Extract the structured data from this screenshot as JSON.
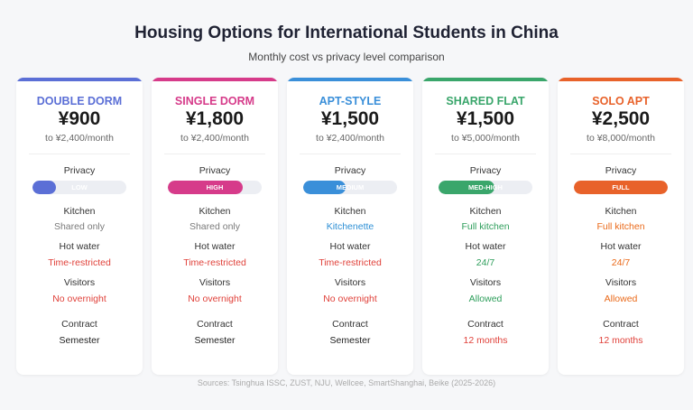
{
  "header": {
    "title": "Housing Options for International Students in China",
    "subtitle": "Monthly cost vs privacy level comparison"
  },
  "cards": [
    {
      "name": "DOUBLE DORM",
      "price": "¥900",
      "range": "to ¥2,400/month",
      "accent": "#5b6fd6",
      "privacy": {
        "label": "Privacy",
        "level": "LOW",
        "value": 25
      },
      "rows": [
        {
          "label": "Kitchen",
          "value": "Shared only",
          "color": "#7a7a7a"
        },
        {
          "label": "Hot water",
          "value": "Time-restricted",
          "color": "#e0413a"
        },
        {
          "label": "Visitors",
          "value": "No overnight",
          "color": "#e0413a"
        },
        {
          "label": "Contract",
          "value": "Semester",
          "color": "#222222"
        }
      ]
    },
    {
      "name": "SINGLE DORM",
      "price": "¥1,800",
      "range": "to ¥2,400/month",
      "accent": "#d63b8a",
      "privacy": {
        "label": "Privacy",
        "level": "HIGH",
        "value": 80
      },
      "rows": [
        {
          "label": "Kitchen",
          "value": "Shared only",
          "color": "#7a7a7a"
        },
        {
          "label": "Hot water",
          "value": "Time-restricted",
          "color": "#e0413a"
        },
        {
          "label": "Visitors",
          "value": "No overnight",
          "color": "#e0413a"
        },
        {
          "label": "Contract",
          "value": "Semester",
          "color": "#222222"
        }
      ]
    },
    {
      "name": "APT-STYLE",
      "price": "¥1,500",
      "range": "to ¥2,400/month",
      "accent": "#3a8fd9",
      "privacy": {
        "label": "Privacy",
        "level": "MEDIUM",
        "value": 45
      },
      "rows": [
        {
          "label": "Kitchen",
          "value": "Kitchenette",
          "color": "#2d8fd5"
        },
        {
          "label": "Hot water",
          "value": "Time-restricted",
          "color": "#e0413a"
        },
        {
          "label": "Visitors",
          "value": "No overnight",
          "color": "#e0413a"
        },
        {
          "label": "Contract",
          "value": "Semester",
          "color": "#222222"
        }
      ]
    },
    {
      "name": "SHARED FLAT",
      "price": "¥1,500",
      "range": "to ¥5,000/month",
      "accent": "#3aa66b",
      "privacy": {
        "label": "Privacy",
        "level": "MED-HIGH",
        "value": 60
      },
      "rows": [
        {
          "label": "Kitchen",
          "value": "Full kitchen",
          "color": "#2e9e5b"
        },
        {
          "label": "Hot water",
          "value": "24/7",
          "color": "#2e9e5b"
        },
        {
          "label": "Visitors",
          "value": "Allowed",
          "color": "#2e9e5b"
        },
        {
          "label": "Contract",
          "value": "12 months",
          "color": "#e0413a"
        }
      ]
    },
    {
      "name": "SOLO APT",
      "price": "¥2,500",
      "range": "to ¥8,000/month",
      "accent": "#e8622a",
      "privacy": {
        "label": "Privacy",
        "level": "FULL",
        "value": 100
      },
      "rows": [
        {
          "label": "Kitchen",
          "value": "Full kitchen",
          "color": "#ea6a1a"
        },
        {
          "label": "Hot water",
          "value": "24/7",
          "color": "#ea6a1a"
        },
        {
          "label": "Visitors",
          "value": "Allowed",
          "color": "#ea6a1a"
        },
        {
          "label": "Contract",
          "value": "12 months",
          "color": "#e0413a"
        }
      ]
    }
  ],
  "footer": "Sources: Tsinghua ISSC, ZUST, NJU, Wellcee, SmartShanghai, Beike (2025-2026)"
}
